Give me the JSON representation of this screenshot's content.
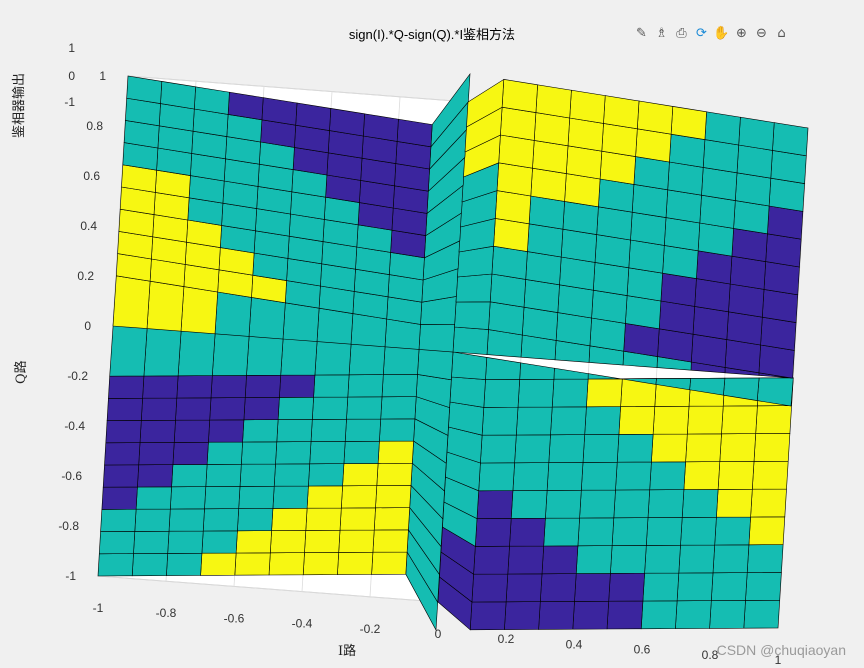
{
  "window": {
    "title": "sign(I).*Q-sign(Q).*I鉴相方法",
    "watermark": "CSDN @chuqiaoyan"
  },
  "toolbar": {
    "icons": [
      "brush-icon",
      "datatip-icon",
      "export-icon",
      "rotate-icon",
      "pan-icon",
      "zoom-in-icon",
      "zoom-out-icon",
      "home-icon"
    ],
    "glyphs": [
      "✎",
      "♗",
      "⎙",
      "⟳",
      "✋",
      "⊕",
      "⊖",
      "⌂"
    ]
  },
  "colors": {
    "low": "#3b259e",
    "mid": "#15bdb2",
    "high": "#f7f712",
    "axes_bg": "#ffffff",
    "grid": "#dcdcdc"
  },
  "chart_data": {
    "type": "surface",
    "title": "sign(I).*Q-sign(Q).*I鉴相方法",
    "xlabel": "I路",
    "ylabel": "Q路",
    "zlabel": "鉴相器输出",
    "xlim": [
      -1,
      1
    ],
    "ylim": [
      -1,
      1
    ],
    "zlim": [
      -1,
      1
    ],
    "x_ticks": [
      "-1",
      "-0.8",
      "-0.6",
      "-0.4",
      "-0.2",
      "0",
      "0.2",
      "0.4",
      "0.6",
      "0.8",
      "1"
    ],
    "y_ticks": [
      "-1",
      "-0.8",
      "-0.6",
      "-0.4",
      "-0.2",
      "0",
      "0.2",
      "0.4",
      "0.6",
      "0.8",
      "1"
    ],
    "z_ticks": [
      "-1",
      "0",
      "1"
    ],
    "grid": true,
    "x_step": 0.1,
    "y_step": 0.1,
    "formula": "sign(I).*Q-sign(Q).*I"
  }
}
